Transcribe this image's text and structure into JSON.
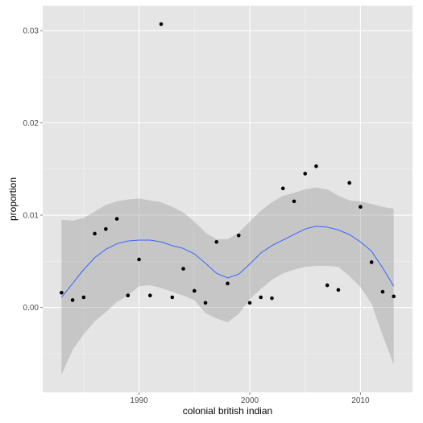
{
  "chart_data": {
    "type": "scatter",
    "title": "",
    "xlabel": "colonial british indian",
    "ylabel": "proportion",
    "xlim": [
      1981.3,
      2014.7
    ],
    "ylim": [
      -0.0092,
      0.0327
    ],
    "x_ticks": [
      1990,
      2000,
      2010
    ],
    "x_tick_labels": [
      "1990",
      "2000",
      "2010"
    ],
    "y_ticks": [
      0,
      0.01,
      0.02,
      0.03
    ],
    "y_tick_labels": [
      "0.00",
      "0.01",
      "0.02",
      "0.03"
    ],
    "grid": true,
    "legend": "none",
    "points": {
      "x": [
        1983,
        1984,
        1985,
        1986,
        1987,
        1988,
        1989,
        1990,
        1991,
        1992,
        1993,
        1994,
        1995,
        1996,
        1997,
        1998,
        1999,
        2000,
        2001,
        2002,
        2003,
        2004,
        2005,
        2006,
        2007,
        2008,
        2009,
        2010,
        2011,
        2012,
        2013
      ],
      "y": [
        0.0016,
        0.0008,
        0.0011,
        0.008,
        0.0085,
        0.0096,
        0.0013,
        0.0052,
        0.0013,
        0.0307,
        0.0011,
        0.0042,
        0.0018,
        0.0005,
        0.0071,
        0.0026,
        0.0078,
        0.0005,
        0.0011,
        0.001,
        0.0129,
        0.0115,
        0.0145,
        0.0153,
        0.0024,
        0.0019,
        0.0135,
        0.0109,
        0.0049,
        0.0017,
        0.0012
      ]
    },
    "smooth": {
      "x": [
        1983,
        1984,
        1985,
        1986,
        1987,
        1988,
        1989,
        1990,
        1991,
        1992,
        1993,
        1994,
        1995,
        1996,
        1997,
        1998,
        1999,
        2000,
        2001,
        2002,
        2003,
        2004,
        2005,
        2006,
        2007,
        2008,
        2009,
        2010,
        2011,
        2012,
        2013
      ],
      "y": [
        0.0011,
        0.0026,
        0.0041,
        0.0054,
        0.0063,
        0.0069,
        0.0072,
        0.0073,
        0.0073,
        0.0071,
        0.0067,
        0.0064,
        0.0058,
        0.0048,
        0.0037,
        0.0032,
        0.0036,
        0.0047,
        0.0059,
        0.0067,
        0.0073,
        0.0079,
        0.0085,
        0.0088,
        0.0087,
        0.0084,
        0.0079,
        0.0071,
        0.0061,
        0.0043,
        0.0023
      ],
      "lower": [
        -0.0073,
        -0.0046,
        -0.0029,
        -0.0015,
        -0.0005,
        0.0006,
        0.0013,
        0.0023,
        0.0024,
        0.0021,
        0.0017,
        0.0013,
        0.0008,
        -0.0006,
        -0.0012,
        -0.0016,
        -0.0007,
        0.0009,
        0.002,
        0.003,
        0.0037,
        0.0041,
        0.0044,
        0.0045,
        0.0045,
        0.0044,
        0.0034,
        0.0022,
        0.0004,
        -0.003,
        -0.0062
      ],
      "upper": [
        0.0095,
        0.0094,
        0.0097,
        0.0104,
        0.0111,
        0.0115,
        0.0117,
        0.0118,
        0.0116,
        0.0114,
        0.0109,
        0.0103,
        0.0093,
        0.0081,
        0.0074,
        0.0074,
        0.0081,
        0.0093,
        0.0105,
        0.0114,
        0.0121,
        0.0124,
        0.0128,
        0.013,
        0.0128,
        0.0121,
        0.0116,
        0.0115,
        0.0112,
        0.0109,
        0.0107
      ]
    },
    "colors": {
      "panel_bg": "#e5e5e5",
      "grid_major": "#ffffff",
      "grid_minor": "#f2f2f2",
      "point": "#000000",
      "line": "#3366ff",
      "ribbon": "#999999"
    }
  }
}
